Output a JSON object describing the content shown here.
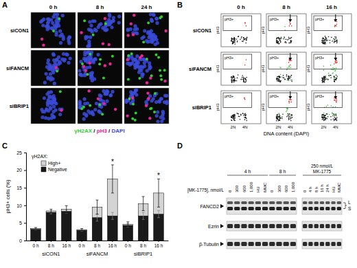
{
  "panel_a": {
    "letter": "A",
    "columns": [
      "0 h",
      "8 h",
      "24 h"
    ],
    "rows": [
      "siCON1",
      "siFANCM",
      "siBRIP1"
    ],
    "legend": [
      {
        "text": "γH2AX",
        "color": "#33cc33"
      },
      {
        "text": "pH3",
        "color": "#e8249a"
      },
      {
        "text": "DAPI",
        "color": "#3a4bd8"
      }
    ],
    "separator": " / "
  },
  "panel_b": {
    "letter": "B",
    "columns": [
      "0 h",
      "8 h",
      "16 h"
    ],
    "rows": [
      "siCON1",
      "siFANCM",
      "siBRIP1"
    ],
    "gate_label": "pH3+",
    "x_ticks": [
      "2N",
      "4N"
    ],
    "x_label": "DNA content (DAPI)",
    "y_label": "pH3"
  },
  "panel_c": {
    "letter": "C"
  },
  "panel_d": {
    "letter": "D",
    "axis_label": "[MK-1775], nmol/L",
    "left_groups": [
      {
        "label": "4 h",
        "lanes": [
          "0",
          "300",
          "600",
          "1,000",
          "HU",
          "MMC"
        ]
      },
      {
        "label": "8 h",
        "lanes": [
          "0",
          "300",
          "600",
          "1,000"
        ]
      }
    ],
    "right_group": {
      "label_lines": [
        "250 nmol/L",
        "MK-1775"
      ],
      "lanes": [
        "0",
        "4 h",
        "8 h",
        "16 h",
        "24 h",
        "HU",
        "MMC"
      ]
    },
    "rows": [
      "FANCD2",
      "Ezrin",
      "β-Tubulin"
    ],
    "bands": [
      "L",
      "S"
    ]
  },
  "chart_data": {
    "type": "bar",
    "stacked": true,
    "categories": [
      "0 h",
      "8 h",
      "16 h",
      "0 h",
      "8 h",
      "16 h",
      "0 h",
      "8 h",
      "16 h"
    ],
    "groups": [
      "siCON1",
      "siFANCM",
      "siBRIP1"
    ],
    "ylabel": "pH3+ cells (%)",
    "ylim": [
      0,
      25
    ],
    "yticks": [
      0,
      5,
      10,
      15,
      20,
      25
    ],
    "legend": "upper left",
    "legend_title": "γH2AX:",
    "series": [
      {
        "name": "Negative",
        "color": "#1a1a1a",
        "values": [
          3.2,
          8.0,
          8.3,
          2.9,
          6.5,
          7.0,
          4.3,
          7.0,
          7.5
        ],
        "errors": [
          0.2,
          0.4,
          0.5,
          0.2,
          1.0,
          1.0,
          0.5,
          1.0,
          1.0
        ]
      },
      {
        "name": "High+",
        "color": "#d4d4d4",
        "values": [
          0.2,
          0.4,
          0.6,
          0.2,
          3.0,
          10.5,
          0.3,
          3.5,
          6.0
        ],
        "errors": [
          0.3,
          0.5,
          1.0,
          0.3,
          2.0,
          4.0,
          0.7,
          2.0,
          4.0
        ]
      }
    ],
    "annotations": [
      {
        "text": "*",
        "index": 5
      },
      {
        "text": "*",
        "index": 8
      }
    ]
  }
}
